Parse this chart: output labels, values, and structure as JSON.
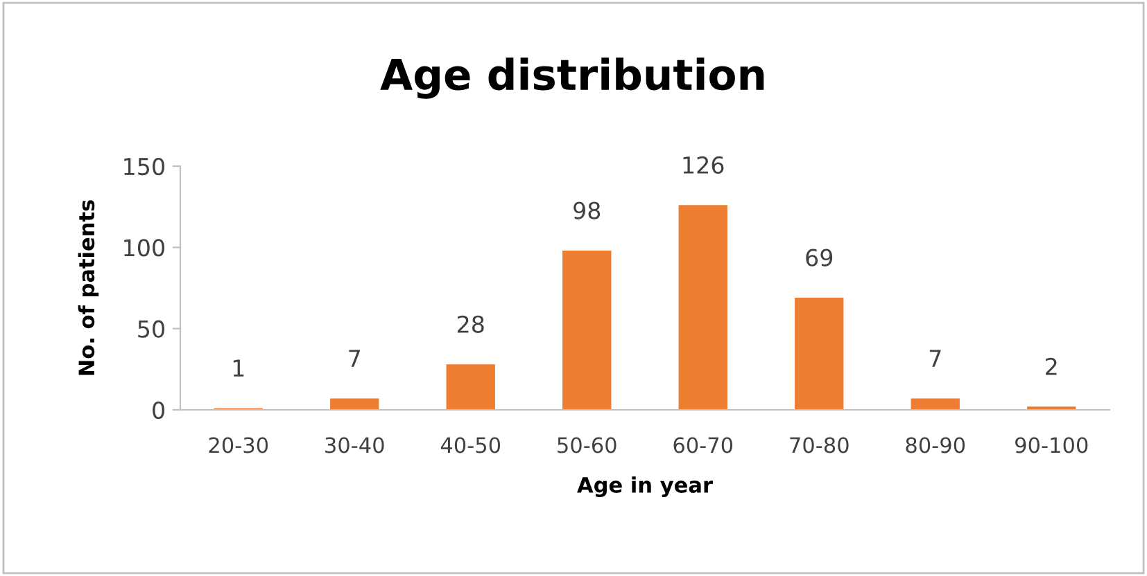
{
  "chart_data": {
    "type": "bar",
    "title": "Age distribution",
    "xlabel": "Age in year",
    "ylabel": "No. of patients",
    "categories": [
      "20-30",
      "30-40",
      "40-50",
      "50-60",
      "60-70",
      "70-80",
      "80-90",
      "90-100"
    ],
    "values": [
      1,
      7,
      28,
      98,
      126,
      69,
      7,
      2
    ],
    "color": "#ed7d31",
    "ylim": [
      0,
      150
    ],
    "yticks": [
      0,
      50,
      100,
      150
    ],
    "data_labels": true,
    "grid": false,
    "legend": false
  }
}
